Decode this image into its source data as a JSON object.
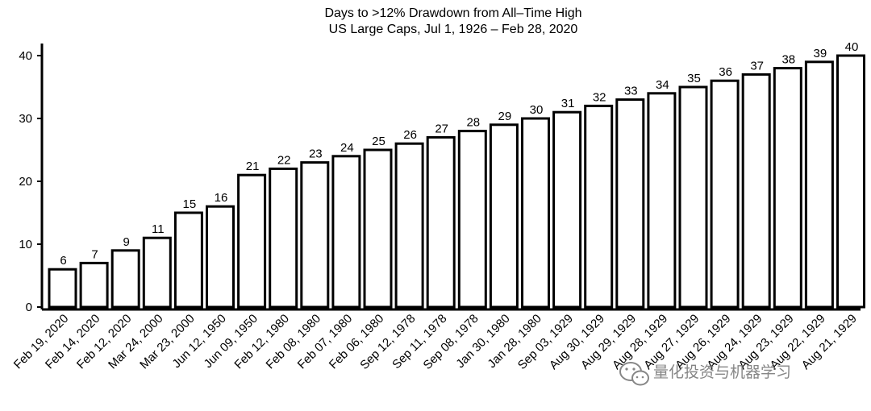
{
  "chart_data": {
    "type": "bar",
    "title": "Days to >12% Drawdown from All–Time High",
    "subtitle": "US Large Caps, Jul 1, 1926 – Feb 28, 2020",
    "xlabel": "",
    "ylabel": "",
    "ylim": [
      0,
      40
    ],
    "yticks": [
      0,
      10,
      20,
      30,
      40
    ],
    "grid": false,
    "legend": "none",
    "categories": [
      "Feb 19, 2020",
      "Feb 14, 2020",
      "Feb 12, 2020",
      "Mar 24, 2000",
      "Mar 23, 2000",
      "Jun 12, 1950",
      "Jun 09, 1950",
      "Feb 12, 1980",
      "Feb 08, 1980",
      "Feb 07, 1980",
      "Feb 06, 1980",
      "Sep 12, 1978",
      "Sep 11, 1978",
      "Sep 08, 1978",
      "Jan 30, 1980",
      "Jan 28, 1980",
      "Sep 03, 1929",
      "Aug 30, 1929",
      "Aug 29, 1929",
      "Aug 28, 1929",
      "Aug 27, 1929",
      "Aug 26, 1929",
      "Aug 24, 1929",
      "Aug 23, 1929",
      "Aug 22, 1929",
      "Aug 21, 1929"
    ],
    "values": [
      6,
      7,
      9,
      11,
      15,
      16,
      21,
      22,
      23,
      24,
      25,
      26,
      27,
      28,
      29,
      30,
      31,
      32,
      33,
      34,
      35,
      36,
      37,
      38,
      39,
      40
    ],
    "bar_fill": "#ffffff",
    "bar_stroke": "#000000"
  },
  "watermark": {
    "text": "量化投资与机器学习",
    "color": "#7a7a7a"
  }
}
